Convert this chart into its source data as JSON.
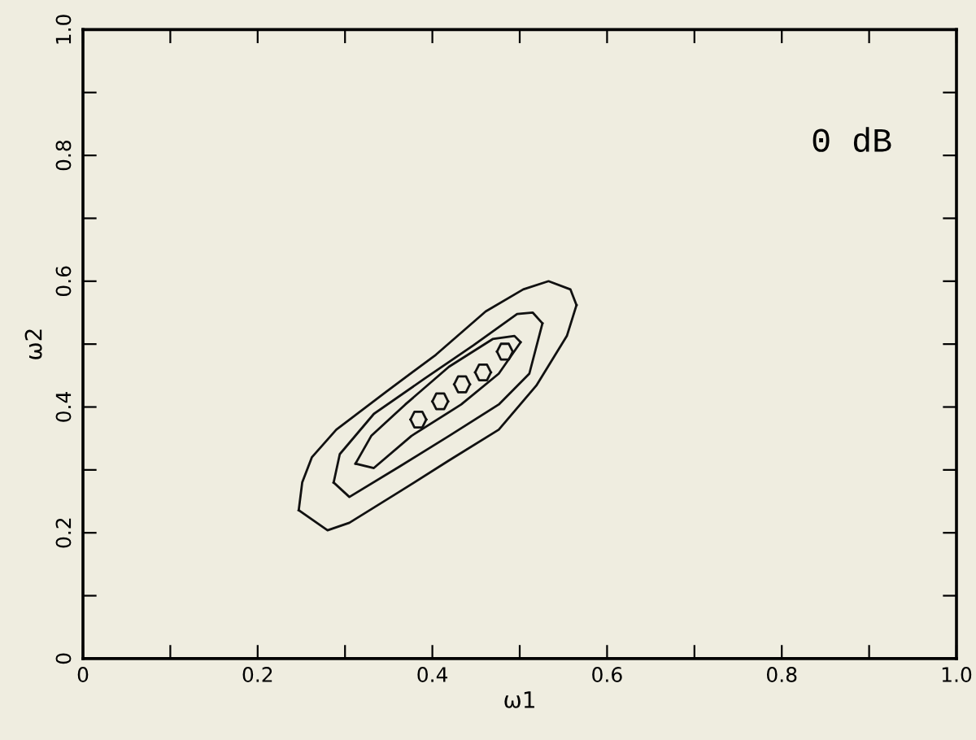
{
  "chart_data": {
    "type": "line",
    "xlabel": "ω1",
    "ylabel": "ω2",
    "annotations": [
      "0 dB"
    ],
    "grid": false,
    "legend": false,
    "marker": "none",
    "line_style": "solid",
    "xlim": [
      0,
      1
    ],
    "ylim": [
      0,
      1
    ],
    "xticks": [
      0,
      {
        "value": 0.1,
        "label": null
      },
      0.2,
      {
        "value": 0.3,
        "label": null
      },
      0.4,
      {
        "value": 0.5,
        "label": null
      },
      0.6,
      {
        "value": 0.7,
        "label": null
      },
      0.8,
      {
        "value": 0.9,
        "label": null
      },
      {
        "value": 1,
        "label": "1.0"
      }
    ],
    "yticks": [
      0,
      {
        "value": 0.1,
        "label": null
      },
      0.2,
      {
        "value": 0.3,
        "label": null
      },
      0.4,
      {
        "value": 0.5,
        "label": null
      },
      0.6,
      {
        "value": 0.7,
        "label": null
      },
      0.8,
      {
        "value": 0.9,
        "label": null
      },
      {
        "value": 1,
        "label": "1.0"
      }
    ],
    "series": [
      {
        "color": "#111111",
        "x": [
          0.247,
          0.28,
          0.305,
          0.362,
          0.419,
          0.476,
          0.519,
          0.554,
          0.565
        ],
        "values": [
          0.236,
          0.204,
          0.216,
          0.265,
          0.315,
          0.364,
          0.434,
          0.513,
          0.562
        ]
      },
      {
        "color": "#111111",
        "x": [
          0.247,
          0.251,
          0.262,
          0.29,
          0.347,
          0.404,
          0.461,
          0.504,
          0.533,
          0.558,
          0.565
        ],
        "values": [
          0.236,
          0.28,
          0.32,
          0.364,
          0.424,
          0.483,
          0.552,
          0.587,
          0.6,
          0.587,
          0.562
        ]
      },
      {
        "color": "#111111",
        "x": [
          0.287,
          0.305,
          0.362,
          0.419,
          0.476,
          0.511,
          0.526
        ],
        "values": [
          0.28,
          0.257,
          0.305,
          0.354,
          0.404,
          0.453,
          0.533
        ]
      },
      {
        "color": "#111111",
        "x": [
          0.287,
          0.294,
          0.333,
          0.39,
          0.447,
          0.497,
          0.515,
          0.526
        ],
        "values": [
          0.28,
          0.325,
          0.389,
          0.444,
          0.498,
          0.548,
          0.55,
          0.533
        ]
      },
      {
        "color": "#111111",
        "x": [
          0.312,
          0.333,
          0.376,
          0.433,
          0.476,
          0.501
        ],
        "values": [
          0.31,
          0.303,
          0.354,
          0.404,
          0.453,
          0.503
        ]
      },
      {
        "color": "#111111",
        "x": [
          0.312,
          0.33,
          0.369,
          0.419,
          0.469,
          0.494,
          0.501
        ],
        "values": [
          0.31,
          0.354,
          0.404,
          0.464,
          0.508,
          0.513,
          0.503
        ]
      },
      {
        "color": "#111111",
        "x": [
          0.375,
          0.3795,
          0.3885,
          0.393
        ],
        "values": [
          0.38,
          0.3675,
          0.3675,
          0.38
        ]
      },
      {
        "color": "#111111",
        "x": [
          0.375,
          0.3795,
          0.3885,
          0.393
        ],
        "values": [
          0.38,
          0.3925,
          0.3925,
          0.38
        ]
      },
      {
        "color": "#111111",
        "x": [
          0.4,
          0.4045,
          0.4135,
          0.418
        ],
        "values": [
          0.409,
          0.3965,
          0.3965,
          0.409
        ]
      },
      {
        "color": "#111111",
        "x": [
          0.4,
          0.4045,
          0.4135,
          0.418
        ],
        "values": [
          0.409,
          0.4215,
          0.4215,
          0.409
        ]
      },
      {
        "color": "#111111",
        "x": [
          0.425,
          0.4295,
          0.4385,
          0.443
        ],
        "values": [
          0.436,
          0.4235,
          0.4235,
          0.436
        ]
      },
      {
        "color": "#111111",
        "x": [
          0.425,
          0.4295,
          0.4385,
          0.443
        ],
        "values": [
          0.436,
          0.4485,
          0.4485,
          0.436
        ]
      },
      {
        "color": "#111111",
        "x": [
          0.449,
          0.4535,
          0.4625,
          0.467
        ],
        "values": [
          0.455,
          0.4425,
          0.4425,
          0.455
        ]
      },
      {
        "color": "#111111",
        "x": [
          0.449,
          0.4535,
          0.4625,
          0.467
        ],
        "values": [
          0.455,
          0.4675,
          0.4675,
          0.455
        ]
      },
      {
        "color": "#111111",
        "x": [
          0.474,
          0.4785,
          0.4875,
          0.492
        ],
        "values": [
          0.488,
          0.4755,
          0.4755,
          0.488
        ]
      },
      {
        "color": "#111111",
        "x": [
          0.474,
          0.4785,
          0.4875,
          0.492
        ],
        "values": [
          0.488,
          0.5005,
          0.5005,
          0.488
        ]
      }
    ]
  }
}
